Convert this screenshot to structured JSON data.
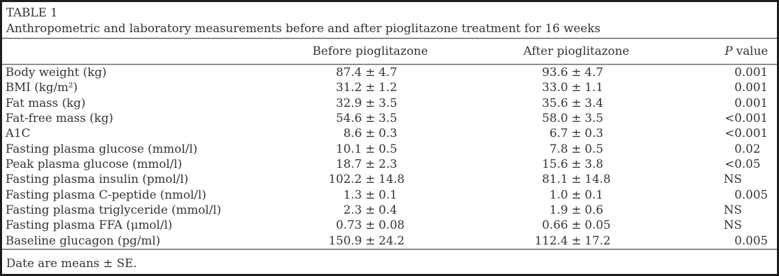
{
  "figure": {
    "label": "TABLE 1",
    "caption": "Anthropometric and laboratory measurements before and after pioglitazone treatment for 16 weeks",
    "footnote": "Date are means ± SE."
  },
  "headers": {
    "before": "Before pioglitazone",
    "after": "After pioglitazone",
    "p_symbol": "P",
    "p_text": " value"
  },
  "plus_minus": "±",
  "rows": [
    {
      "label": "Body weight (kg)",
      "before_mean": "87.4",
      "before_se": "4.7",
      "after_mean": "93.6",
      "after_se": "4.7",
      "p": "0.001"
    },
    {
      "label": "BMI (kg/m²)",
      "before_mean": "31.2",
      "before_se": "1.2",
      "after_mean": "33.0",
      "after_se": "1.1",
      "p": "0.001"
    },
    {
      "label": "Fat mass (kg)",
      "before_mean": "32.9",
      "before_se": "3.5",
      "after_mean": "35.6",
      "after_se": "3.4",
      "p": "0.001"
    },
    {
      "label": "Fat-free mass (kg)",
      "before_mean": "54.6",
      "before_se": "3.5",
      "after_mean": "58.0",
      "after_se": "3.5",
      "p": "<0.001"
    },
    {
      "label": "A1C",
      "before_mean": "8.6",
      "before_se": "0.3",
      "after_mean": "6.7",
      "after_se": "0.3",
      "p": "<0.001"
    },
    {
      "label": "Fasting plasma glucose (mmol/l)",
      "before_mean": "10.1",
      "before_se": "0.5",
      "after_mean": "7.8",
      "after_se": "0.5",
      "p": "0.02"
    },
    {
      "label": "Peak plasma glucose (mmol/l)",
      "before_mean": "18.7",
      "before_se": "2.3",
      "after_mean": "15.6",
      "after_se": "3.8",
      "p": "<0.05"
    },
    {
      "label": "Fasting plasma insulin (pmol/l)",
      "before_mean": "102.2",
      "before_se": "14.8",
      "after_mean": "81.1",
      "after_se": "14.8",
      "p": "NS"
    },
    {
      "label": "Fasting plasma C-peptide (nmol/l)",
      "before_mean": "1.3",
      "before_se": "0.1",
      "after_mean": "1.0",
      "after_se": "0.1",
      "p": "0.005"
    },
    {
      "label": "Fasting plasma triglyceride (mmol/l)",
      "before_mean": "2.3",
      "before_se": "0.4",
      "after_mean": "1.9",
      "after_se": "0.6",
      "p": "NS"
    },
    {
      "label": "Fasting plasma FFA (μmol/l)",
      "before_mean": "0.73",
      "before_se": "0.08",
      "after_mean": "0.66",
      "after_se": "0.05",
      "p": "NS"
    },
    {
      "label": "Baseline glucagon (pg/ml)",
      "before_mean": "150.9",
      "before_se": "24.2",
      "after_mean": "112.4",
      "after_se": "17.2",
      "p": "0.005"
    }
  ],
  "colors": {
    "text": "#333333",
    "rule": "#8c8c8c",
    "border": "#1c1c1c",
    "background": "#ffffff"
  }
}
